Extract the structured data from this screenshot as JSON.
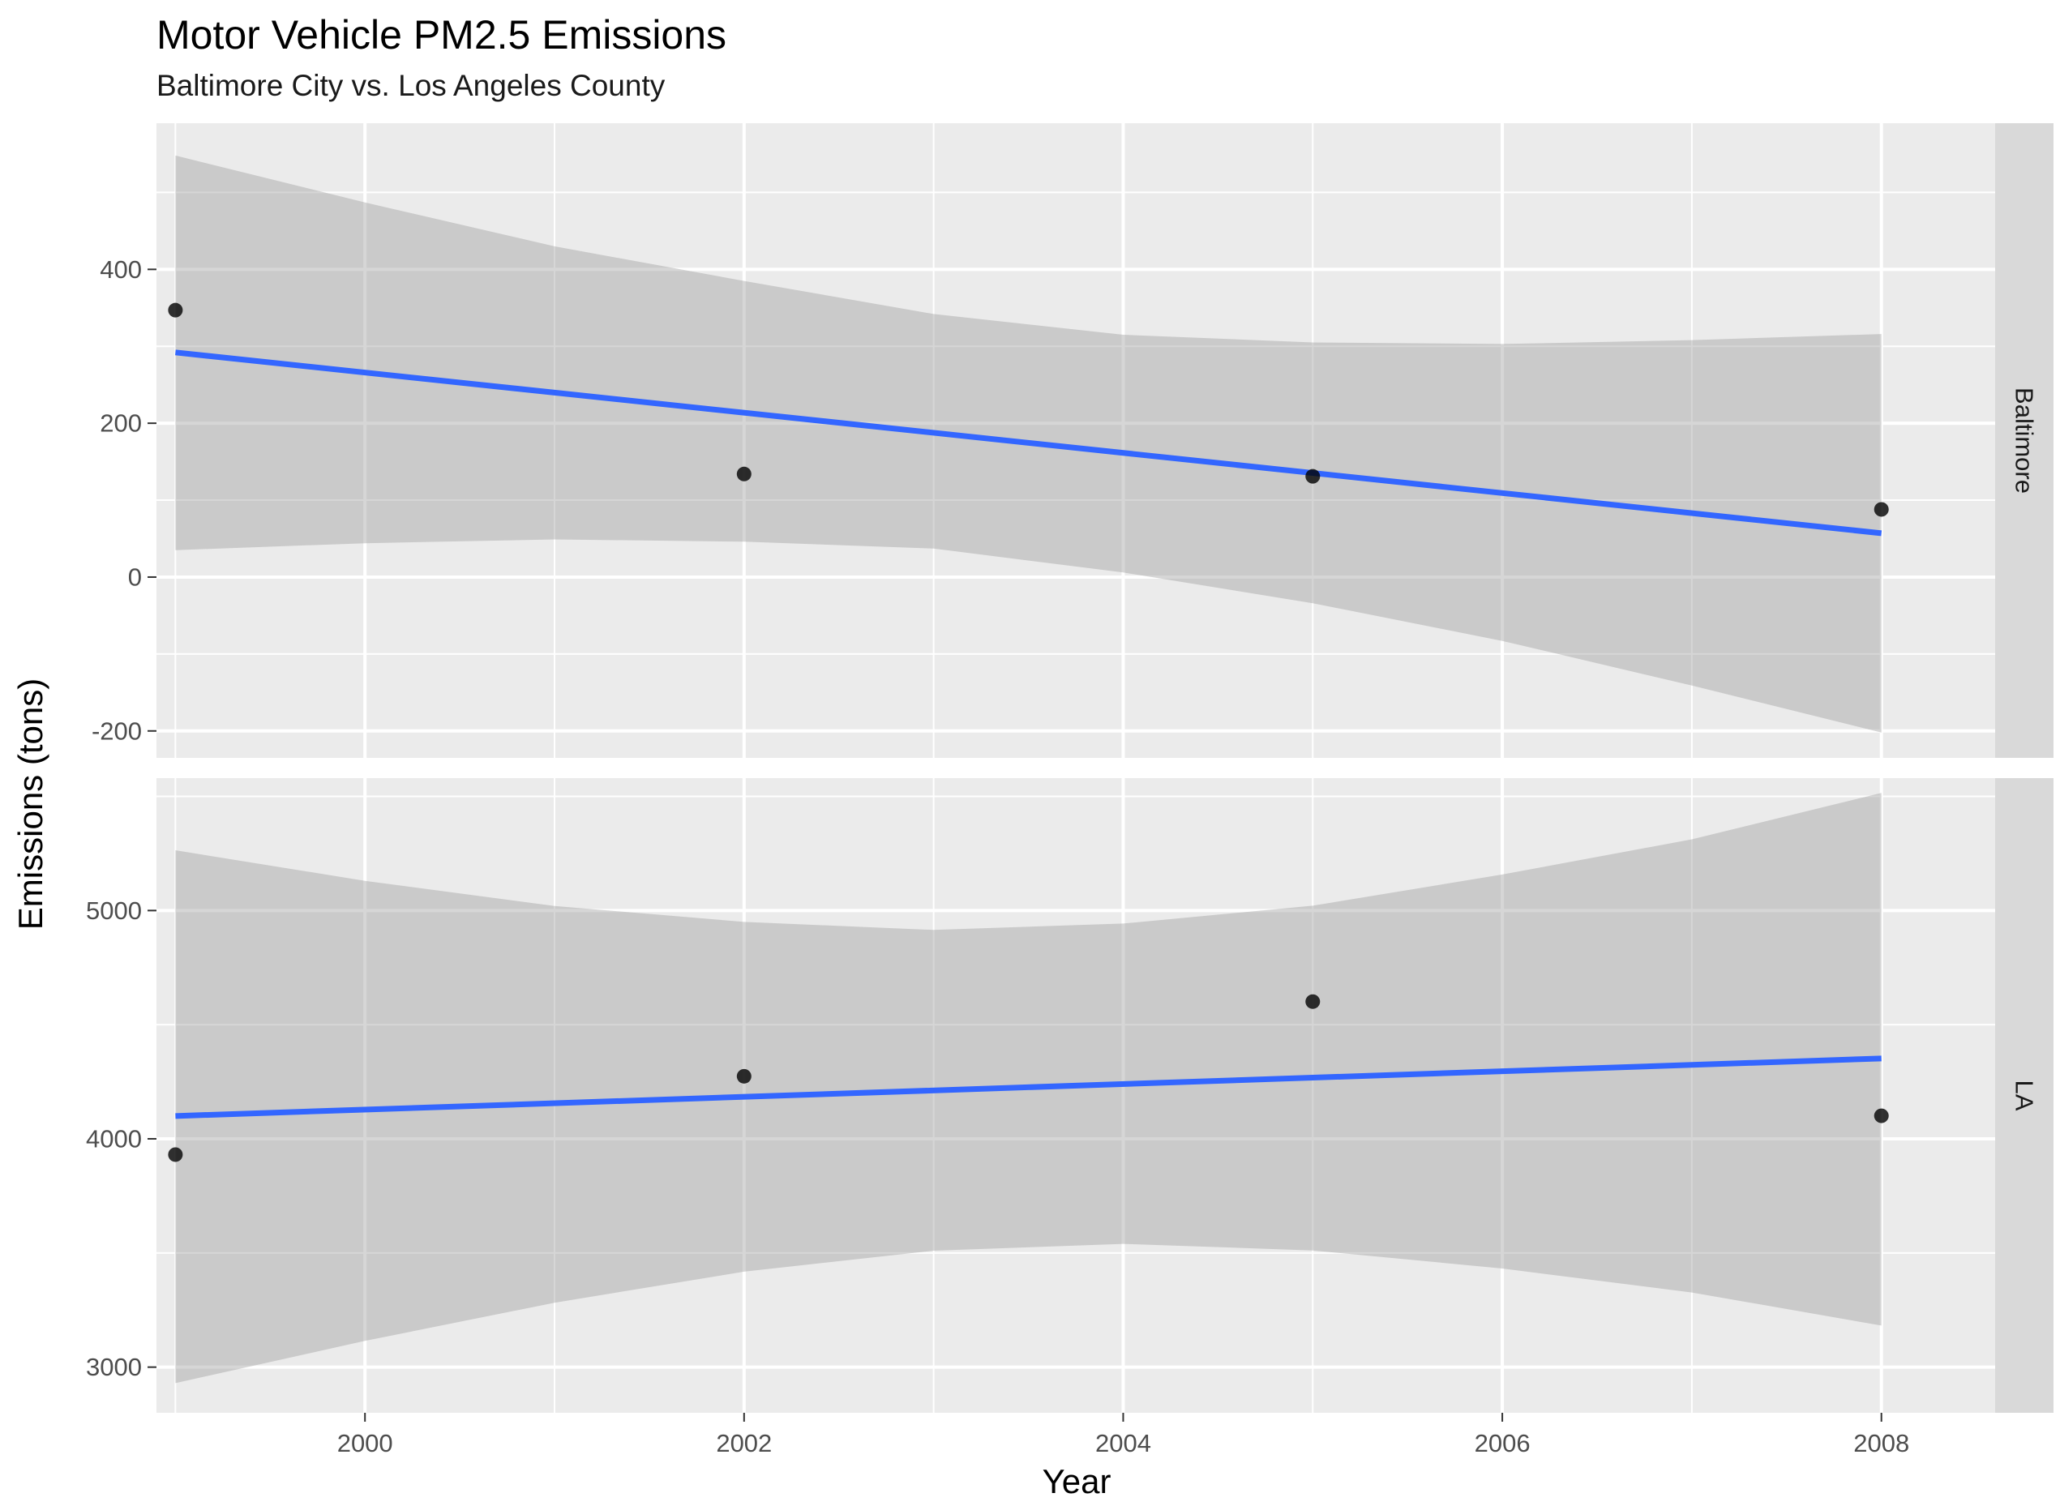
{
  "chart_data": {
    "type": "scatter",
    "title": "Motor Vehicle PM2.5 Emissions",
    "subtitle": "Baltimore City vs. Los Angeles County",
    "xlabel": "Year",
    "ylabel": "Emissions (tons)",
    "x_ticks": [
      2000,
      2002,
      2004,
      2006,
      2008
    ],
    "xlim": [
      1998.9,
      2008.6
    ],
    "grid": true,
    "facets": [
      {
        "strip": "Baltimore",
        "ylim": [
          -235,
          590
        ],
        "y_ticks": [
          -200,
          0,
          200,
          400
        ],
        "points": [
          {
            "x": 1999,
            "y": 347
          },
          {
            "x": 2002,
            "y": 134
          },
          {
            "x": 2005,
            "y": 131
          },
          {
            "x": 2008,
            "y": 88
          }
        ],
        "fit_line": [
          {
            "x": 1999,
            "y": 292
          },
          {
            "x": 2008,
            "y": 57
          }
        ],
        "confidence_band": {
          "x": [
            1999,
            2000,
            2001,
            2002,
            2003,
            2004,
            2005,
            2006,
            2007,
            2008
          ],
          "upper": [
            548,
            487,
            430,
            385,
            342,
            315,
            305,
            303,
            308,
            316
          ],
          "lower": [
            35,
            44,
            49,
            46,
            37,
            6,
            -34,
            -83,
            -141,
            -202
          ]
        },
        "line_color": "#3366ff",
        "point_color": "#000000"
      },
      {
        "strip": "LA",
        "ylim": [
          2800,
          5580
        ],
        "y_ticks": [
          3000,
          4000,
          5000
        ],
        "points": [
          {
            "x": 1999,
            "y": 3931
          },
          {
            "x": 2002,
            "y": 4274
          },
          {
            "x": 2005,
            "y": 4601
          },
          {
            "x": 2008,
            "y": 4101
          }
        ],
        "fit_line": [
          {
            "x": 1999,
            "y": 4100
          },
          {
            "x": 2008,
            "y": 4352
          }
        ],
        "confidence_band": {
          "x": [
            1999,
            2000,
            2001,
            2002,
            2003,
            2004,
            2005,
            2006,
            2007,
            2008
          ],
          "upper": [
            5264,
            5130,
            5020,
            4950,
            4915,
            4943,
            5021,
            5158,
            5312,
            5515
          ],
          "lower": [
            2930,
            3115,
            3282,
            3418,
            3510,
            3540,
            3511,
            3432,
            3327,
            3182
          ]
        },
        "line_color": "#3366ff",
        "point_color": "#000000"
      }
    ]
  }
}
